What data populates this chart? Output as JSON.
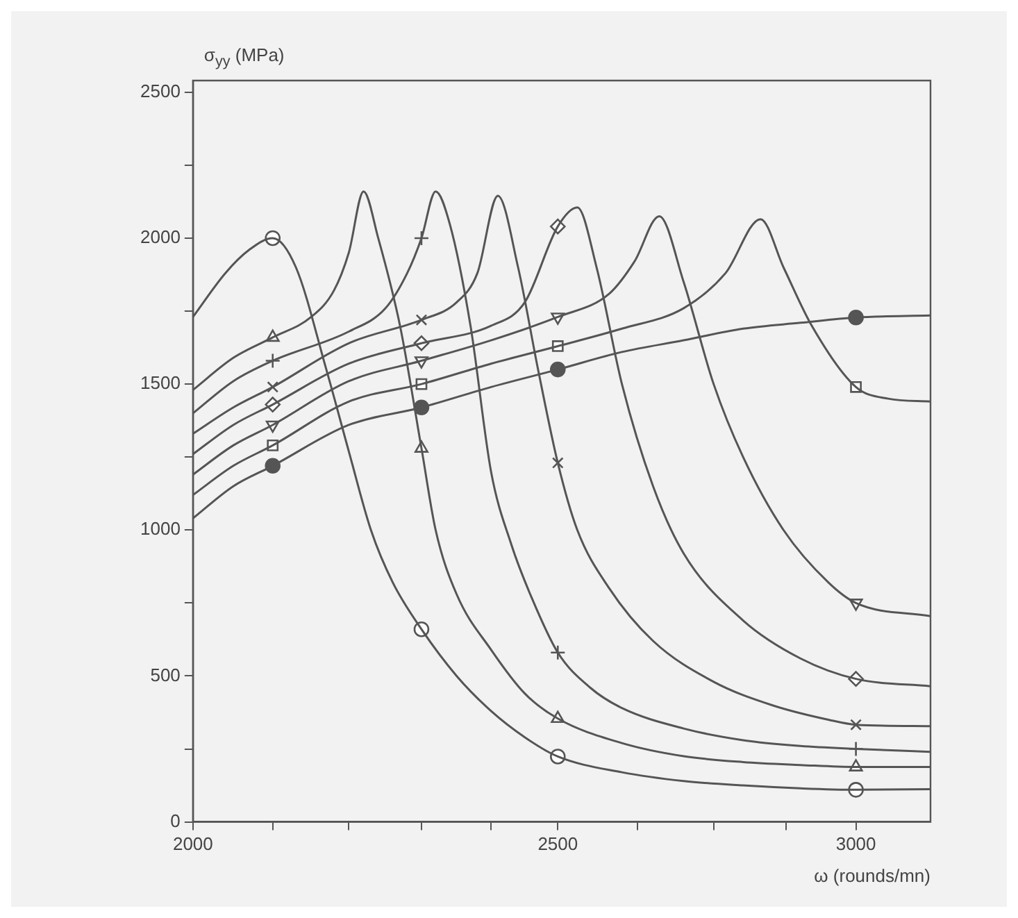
{
  "chart_data": {
    "type": "line",
    "xlabel": "ω (rounds/mn)",
    "ylabel": "σ$_{yy}$ (MPa)",
    "log": "x",
    "grid": false,
    "legend": false,
    "xlim": [
      2000,
      3140
    ],
    "xticks": [
      2000,
      {
        "value": 2100,
        "label": null
      },
      {
        "value": 2200,
        "label": null
      },
      {
        "value": 2300,
        "label": null
      },
      {
        "value": 2400,
        "label": null
      },
      2500,
      {
        "value": 2625,
        "label": null
      },
      {
        "value": 2750,
        "label": null
      },
      {
        "value": 2875,
        "label": null
      },
      3000
    ],
    "ylim": [
      0,
      2540
    ],
    "yticks": [
      0,
      {
        "value": 250,
        "label": null
      },
      500,
      {
        "value": 750,
        "label": null
      },
      1000,
      {
        "value": 1250,
        "label": null
      },
      1500,
      {
        "value": 1750,
        "label": null
      },
      2000,
      {
        "value": 2250,
        "label": null
      },
      2500
    ],
    "series": [
      {
        "marker": "none",
        "line_style": "solid",
        "color": "#555555",
        "x": [
          2000,
          2040,
          2070,
          2100,
          2130,
          2170,
          2200,
          2230,
          2260,
          2300,
          2350,
          2400,
          2450,
          2500,
          2600,
          2700,
          2800,
          2900,
          3000,
          3140
        ],
        "values": [
          1730,
          1880,
          1960,
          2000,
          1900,
          1550,
          1270,
          1000,
          820,
          660,
          500,
          380,
          290,
          224,
          170,
          140,
          125,
          115,
          110,
          112
        ]
      },
      {
        "marker": "none",
        "line_style": "solid",
        "color": "#555555",
        "x": [
          2000,
          2050,
          2100,
          2150,
          2180,
          2200,
          2220,
          2240,
          2270,
          2300,
          2320,
          2350,
          2400,
          2450,
          2500,
          2600,
          2700,
          2800,
          2900,
          3000,
          3140
        ],
        "values": [
          1480,
          1590,
          1660,
          1730,
          1820,
          1950,
          2160,
          2000,
          1700,
          1280,
          1000,
          780,
          590,
          440,
          354,
          270,
          225,
          205,
          195,
          188,
          188
        ]
      },
      {
        "marker": "none",
        "line_style": "solid",
        "color": "#555555",
        "x": [
          2000,
          2050,
          2100,
          2200,
          2250,
          2280,
          2300,
          2320,
          2340,
          2370,
          2400,
          2430,
          2460,
          2500,
          2550,
          2600,
          2700,
          2800,
          2900,
          3000,
          3140
        ],
        "values": [
          1400,
          1510,
          1580,
          1680,
          1760,
          1880,
          2000,
          2160,
          2050,
          1700,
          1200,
          950,
          770,
          580,
          460,
          390,
          320,
          280,
          260,
          250,
          240
        ]
      },
      {
        "marker": "none",
        "line_style": "solid",
        "color": "#555555",
        "x": [
          2000,
          2050,
          2100,
          2200,
          2300,
          2350,
          2380,
          2410,
          2440,
          2470,
          2500,
          2530,
          2580,
          2650,
          2750,
          2850,
          2950,
          3000,
          3140
        ],
        "values": [
          1330,
          1420,
          1490,
          1640,
          1720,
          1780,
          1880,
          2145,
          1900,
          1550,
          1230,
          1000,
          800,
          620,
          480,
          400,
          350,
          333,
          328
        ]
      },
      {
        "marker": "none",
        "line_style": "solid",
        "color": "#555555",
        "x": [
          2000,
          2050,
          2100,
          2200,
          2300,
          2400,
          2450,
          2500,
          2530,
          2560,
          2600,
          2650,
          2700,
          2800,
          2900,
          3000,
          3140
        ],
        "values": [
          1260,
          1360,
          1430,
          1570,
          1640,
          1700,
          1780,
          2040,
          2105,
          1900,
          1500,
          1150,
          920,
          690,
          560,
          490,
          465
        ]
      },
      {
        "marker": "none",
        "line_style": "solid",
        "color": "#555555",
        "x": [
          2000,
          2050,
          2100,
          2200,
          2300,
          2400,
          2500,
          2580,
          2620,
          2660,
          2700,
          2750,
          2800,
          2870,
          2950,
          3000,
          3140
        ],
        "values": [
          1190,
          1290,
          1360,
          1510,
          1580,
          1650,
          1730,
          1810,
          1920,
          2075,
          1850,
          1500,
          1250,
          1000,
          820,
          750,
          705
        ]
      },
      {
        "marker": "none",
        "line_style": "solid",
        "color": "#555555",
        "x": [
          2000,
          2050,
          2100,
          2200,
          2300,
          2400,
          2500,
          2600,
          2700,
          2770,
          2830,
          2870,
          2920,
          3000,
          3060,
          3140
        ],
        "values": [
          1120,
          1220,
          1290,
          1440,
          1500,
          1570,
          1630,
          1690,
          1760,
          1880,
          2065,
          1900,
          1700,
          1490,
          1450,
          1440
        ]
      },
      {
        "marker": "none",
        "line_style": "solid",
        "color": "#555555",
        "x": [
          2000,
          2050,
          2100,
          2200,
          2300,
          2400,
          2500,
          2600,
          2700,
          2800,
          2900,
          3000,
          3140
        ],
        "values": [
          1040,
          1150,
          1220,
          1360,
          1420,
          1490,
          1550,
          1610,
          1650,
          1690,
          1710,
          1728,
          1735
        ]
      },
      {
        "type": "scatter",
        "marker": "circle",
        "color": "#555555",
        "x": [
          2100,
          2300,
          2500,
          3000
        ],
        "values": [
          2000,
          660,
          224,
          110
        ]
      },
      {
        "type": "scatter",
        "marker": "triangle",
        "color": "#555555",
        "x": [
          2100,
          2300,
          2500,
          3000
        ],
        "values": [
          1660,
          1280,
          354,
          188
        ]
      },
      {
        "type": "scatter",
        "marker": "plus",
        "color": "#555555",
        "x": [
          2100,
          2300,
          2500,
          3000
        ],
        "values": [
          1580,
          2000,
          580,
          250
        ]
      },
      {
        "type": "scatter",
        "marker": "cross",
        "color": "#555555",
        "x": [
          2100,
          2300,
          2500,
          3000
        ],
        "values": [
          1490,
          1720,
          1230,
          333
        ]
      },
      {
        "type": "scatter",
        "marker": "diamond",
        "color": "#555555",
        "x": [
          2100,
          2300,
          2500,
          3000
        ],
        "values": [
          1430,
          1640,
          2040,
          490
        ]
      },
      {
        "type": "scatter",
        "marker": "triangle-down",
        "color": "#555555",
        "x": [
          2100,
          2300,
          2500,
          3000
        ],
        "values": [
          1360,
          1580,
          1730,
          750
        ]
      },
      {
        "type": "scatter",
        "marker": "square",
        "color": "#555555",
        "x": [
          2100,
          2300,
          2500,
          3000
        ],
        "values": [
          1290,
          1500,
          1630,
          1490
        ]
      },
      {
        "type": "scatter",
        "marker": "filled-circle",
        "color": "#555555",
        "x": [
          2100,
          2300,
          2500,
          3000
        ],
        "values": [
          1220,
          1420,
          1550,
          1728
        ]
      }
    ]
  }
}
